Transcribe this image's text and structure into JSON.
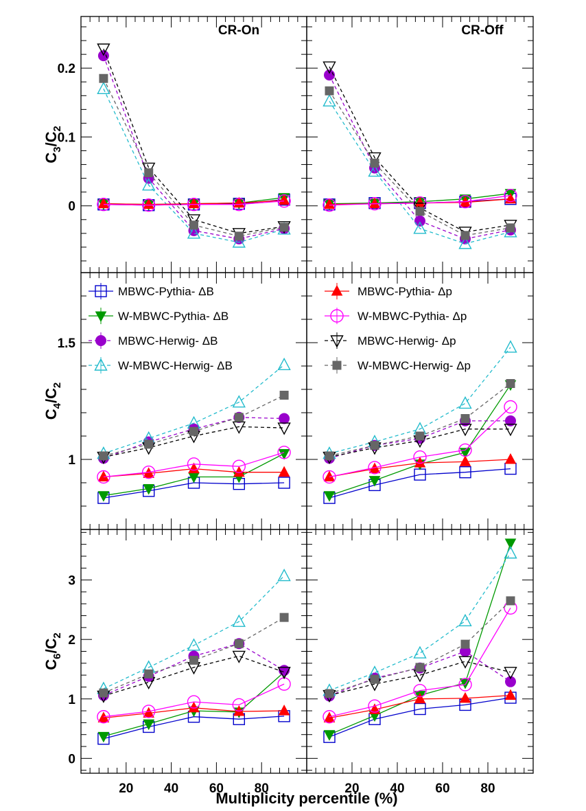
{
  "chart_data": {
    "type": "line",
    "xlabel": "Multiplicity percentile (%)",
    "x": [
      10,
      30,
      50,
      70,
      90
    ],
    "xticks": [
      20,
      40,
      60,
      80
    ],
    "xlim": [
      0,
      100
    ],
    "styles": {
      "MBWC-Pythia- ΔB": {
        "color": "#0000cc",
        "marker": "open-square",
        "dash": false
      },
      "W-MBWC-Pythia- ΔB": {
        "color": "#009900",
        "marker": "down-triangle",
        "dash": false
      },
      "MBWC-Herwig- ΔB": {
        "color": "#9900cc",
        "marker": "circle",
        "dash": true
      },
      "W-MBWC-Herwig- ΔB": {
        "color": "#22bbcc",
        "marker": "open-triangle",
        "dash": true
      },
      "MBWC-Pythia- Δp": {
        "color": "#ff0000",
        "marker": "up-triangle",
        "dash": false
      },
      "W-MBWC-Pythia- Δp": {
        "color": "#ff00ff",
        "marker": "open-circle",
        "dash": false
      },
      "MBWC-Herwig- Δp": {
        "color": "#000000",
        "marker": "open-down-triangle",
        "dash": true
      },
      "W-MBWC-Herwig- Δp": {
        "color": "#666666",
        "marker": "square",
        "dash": true
      }
    },
    "legend": {
      "left": [
        "MBWC-Pythia- ΔB",
        "W-MBWC-Pythia- ΔB",
        "MBWC-Herwig- ΔB",
        "W-MBWC-Herwig- ΔB"
      ],
      "right": [
        "MBWC-Pythia- Δp",
        "W-MBWC-Pythia- Δp",
        "MBWC-Herwig- Δp",
        "W-MBWC-Herwig- Δp"
      ]
    },
    "rows": [
      {
        "ylabel": "C3/C2",
        "ylabel_main": "C",
        "ylabel_sub1": "3",
        "ylabel_sub2": "2",
        "ylim": [
          -0.097,
          0.275
        ],
        "yticks": [
          {
            "v": 0,
            "label": "0"
          },
          {
            "v": 0.1,
            "label": "0.1"
          },
          {
            "v": 0.2,
            "label": "0.2"
          }
        ],
        "panels": [
          {
            "title": "CR-On",
            "series": [
              {
                "name": "MBWC-Pythia- ΔB",
                "values": [
                  0.002,
                  0.001,
                  0.002,
                  0.003,
                  0.009
                ]
              },
              {
                "name": "W-MBWC-Pythia- ΔB",
                "values": [
                  0.003,
                  0.002,
                  0.003,
                  0.004,
                  0.012
                ]
              },
              {
                "name": "MBWC-Herwig- ΔB",
                "values": [
                  0.218,
                  0.04,
                  -0.036,
                  -0.048,
                  -0.033
                ]
              },
              {
                "name": "W-MBWC-Herwig- ΔB",
                "values": [
                  0.17,
                  0.03,
                  -0.04,
                  -0.053,
                  -0.034
                ]
              },
              {
                "name": "MBWC-Pythia- Δp",
                "values": [
                  0.003,
                  0.002,
                  0.003,
                  0.004,
                  0.008
                ]
              },
              {
                "name": "W-MBWC-Pythia- Δp",
                "values": [
                  0.002,
                  0.001,
                  0.002,
                  0.002,
                  0.007
                ]
              },
              {
                "name": "MBWC-Herwig- Δp",
                "values": [
                  0.228,
                  0.055,
                  -0.02,
                  -0.04,
                  -0.03
                ]
              },
              {
                "name": "W-MBWC-Herwig- Δp",
                "values": [
                  0.185,
                  0.048,
                  -0.028,
                  -0.044,
                  -0.031
                ]
              }
            ]
          },
          {
            "title": "CR-Off",
            "series": [
              {
                "name": "MBWC-Pythia- ΔB",
                "values": [
                  0.002,
                  0.004,
                  0.004,
                  0.006,
                  0.01
                ]
              },
              {
                "name": "W-MBWC-Pythia- ΔB",
                "values": [
                  0.003,
                  0.004,
                  0.006,
                  0.01,
                  0.018
                ]
              },
              {
                "name": "MBWC-Herwig- ΔB",
                "values": [
                  0.19,
                  0.055,
                  -0.022,
                  -0.048,
                  -0.035
                ]
              },
              {
                "name": "W-MBWC-Herwig- ΔB",
                "values": [
                  0.152,
                  0.05,
                  -0.033,
                  -0.055,
                  -0.038
                ]
              },
              {
                "name": "MBWC-Pythia- Δp",
                "values": [
                  0.002,
                  0.003,
                  0.004,
                  0.005,
                  0.01
                ]
              },
              {
                "name": "W-MBWC-Pythia- Δp",
                "values": [
                  0.001,
                  0.003,
                  0.004,
                  0.006,
                  0.015
                ]
              },
              {
                "name": "MBWC-Herwig- Δp",
                "values": [
                  0.202,
                  0.07,
                  -0.003,
                  -0.038,
                  -0.028
                ]
              },
              {
                "name": "W-MBWC-Herwig- Δp",
                "values": [
                  0.167,
                  0.062,
                  -0.008,
                  -0.043,
                  -0.032
                ]
              }
            ]
          }
        ]
      },
      {
        "ylabel": "C4/C2",
        "ylabel_main": "C",
        "ylabel_sub1": "4",
        "ylabel_sub2": "2",
        "ylim": [
          0.7,
          1.8
        ],
        "yticks": [
          {
            "v": 1,
            "label": "1"
          },
          {
            "v": 1.5,
            "label": "1.5"
          }
        ],
        "panels": [
          {
            "title": "",
            "series": [
              {
                "name": "MBWC-Pythia- ΔB",
                "values": [
                  0.835,
                  0.865,
                  0.9,
                  0.895,
                  0.9
                ]
              },
              {
                "name": "W-MBWC-Pythia- ΔB",
                "values": [
                  0.845,
                  0.875,
                  0.925,
                  0.925,
                  1.025
                ]
              },
              {
                "name": "MBWC-Herwig- ΔB",
                "values": [
                  1.005,
                  1.075,
                  1.13,
                  1.18,
                  1.175
                ]
              },
              {
                "name": "W-MBWC-Herwig- ΔB",
                "values": [
                  1.025,
                  1.09,
                  1.155,
                  1.245,
                  1.405
                ]
              },
              {
                "name": "MBWC-Pythia- Δp",
                "values": [
                  0.925,
                  0.94,
                  0.96,
                  0.945,
                  0.945
                ]
              },
              {
                "name": "W-MBWC-Pythia- Δp",
                "values": [
                  0.925,
                  0.945,
                  0.98,
                  0.97,
                  1.03
                ]
              },
              {
                "name": "MBWC-Herwig- Δp",
                "values": [
                  1.01,
                  1.05,
                  1.1,
                  1.14,
                  1.135
                ]
              },
              {
                "name": "W-MBWC-Herwig- Δp",
                "values": [
                  1.015,
                  1.065,
                  1.12,
                  1.18,
                  1.275
                ]
              }
            ]
          },
          {
            "title": "",
            "series": [
              {
                "name": "MBWC-Pythia- ΔB",
                "values": [
                  0.835,
                  0.89,
                  0.935,
                  0.945,
                  0.96
                ]
              },
              {
                "name": "W-MBWC-Pythia- ΔB",
                "values": [
                  0.845,
                  0.91,
                  0.98,
                  1.03,
                  1.32
                ]
              },
              {
                "name": "MBWC-Herwig- ΔB",
                "values": [
                  1.005,
                  1.06,
                  1.09,
                  1.165,
                  1.165
                ]
              },
              {
                "name": "W-MBWC-Herwig- ΔB",
                "values": [
                  1.025,
                  1.075,
                  1.13,
                  1.24,
                  1.48
                ]
              },
              {
                "name": "MBWC-Pythia- Δp",
                "values": [
                  0.925,
                  0.96,
                  0.985,
                  0.99,
                  1.0
                ]
              },
              {
                "name": "W-MBWC-Pythia- Δp",
                "values": [
                  0.925,
                  0.965,
                  1.01,
                  1.04,
                  1.225
                ]
              },
              {
                "name": "MBWC-Herwig- Δp",
                "values": [
                  1.01,
                  1.05,
                  1.08,
                  1.13,
                  1.13
                ]
              },
              {
                "name": "W-MBWC-Herwig- Δp",
                "values": [
                  1.015,
                  1.06,
                  1.1,
                  1.175,
                  1.325
                ]
              }
            ]
          }
        ]
      },
      {
        "ylabel": "C6/C2",
        "ylabel_main": "C",
        "ylabel_sub1": "6",
        "ylabel_sub2": "2",
        "ylim": [
          -0.25,
          3.85
        ],
        "yticks": [
          {
            "v": 0,
            "label": "0"
          },
          {
            "v": 1,
            "label": "1"
          },
          {
            "v": 2,
            "label": "2"
          },
          {
            "v": 3,
            "label": "3"
          }
        ],
        "panels": [
          {
            "title": "",
            "series": [
              {
                "name": "MBWC-Pythia- ΔB",
                "values": [
                  0.33,
                  0.53,
                  0.7,
                  0.66,
                  0.71
                ]
              },
              {
                "name": "W-MBWC-Pythia- ΔB",
                "values": [
                  0.37,
                  0.58,
                  0.8,
                  0.78,
                  1.45
                ]
              },
              {
                "name": "MBWC-Herwig- ΔB",
                "values": [
                  1.06,
                  1.38,
                  1.72,
                  1.93,
                  1.48
                ]
              },
              {
                "name": "W-MBWC-Herwig- ΔB",
                "values": [
                  1.17,
                  1.53,
                  1.9,
                  2.3,
                  3.07
                ]
              },
              {
                "name": "MBWC-Pythia- Δp",
                "values": [
                  0.68,
                  0.76,
                  0.85,
                  0.79,
                  0.8
                ]
              },
              {
                "name": "W-MBWC-Pythia- Δp",
                "values": [
                  0.7,
                  0.79,
                  0.95,
                  0.9,
                  1.25
                ]
              },
              {
                "name": "MBWC-Herwig- Δp",
                "values": [
                  1.05,
                  1.28,
                  1.53,
                  1.72,
                  1.45
                ]
              },
              {
                "name": "W-MBWC-Herwig- Δp",
                "values": [
                  1.1,
                  1.42,
                  1.65,
                  1.93,
                  2.37
                ]
              }
            ]
          },
          {
            "title": "",
            "series": [
              {
                "name": "MBWC-Pythia- ΔB",
                "values": [
                  0.36,
                  0.66,
                  0.83,
                  0.9,
                  1.02
                ]
              },
              {
                "name": "W-MBWC-Pythia- ΔB",
                "values": [
                  0.4,
                  0.72,
                  1.06,
                  1.27,
                  3.62
                ]
              },
              {
                "name": "MBWC-Herwig- ΔB",
                "values": [
                  1.05,
                  1.35,
                  1.52,
                  1.8,
                  1.29
                ]
              },
              {
                "name": "W-MBWC-Herwig- ΔB",
                "values": [
                  1.14,
                  1.44,
                  1.77,
                  2.31,
                  3.45
                ]
              },
              {
                "name": "MBWC-Pythia- Δp",
                "values": [
                  0.68,
                  0.82,
                  1.0,
                  1.01,
                  1.06
                ]
              },
              {
                "name": "W-MBWC-Pythia- Δp",
                "values": [
                  0.7,
                  0.88,
                  1.14,
                  1.24,
                  2.53
                ]
              },
              {
                "name": "MBWC-Herwig- Δp",
                "values": [
                  1.06,
                  1.25,
                  1.4,
                  1.63,
                  1.45
                ]
              },
              {
                "name": "W-MBWC-Herwig- Δp",
                "values": [
                  1.09,
                  1.33,
                  1.53,
                  1.92,
                  2.65
                ]
              }
            ]
          }
        ]
      }
    ]
  }
}
